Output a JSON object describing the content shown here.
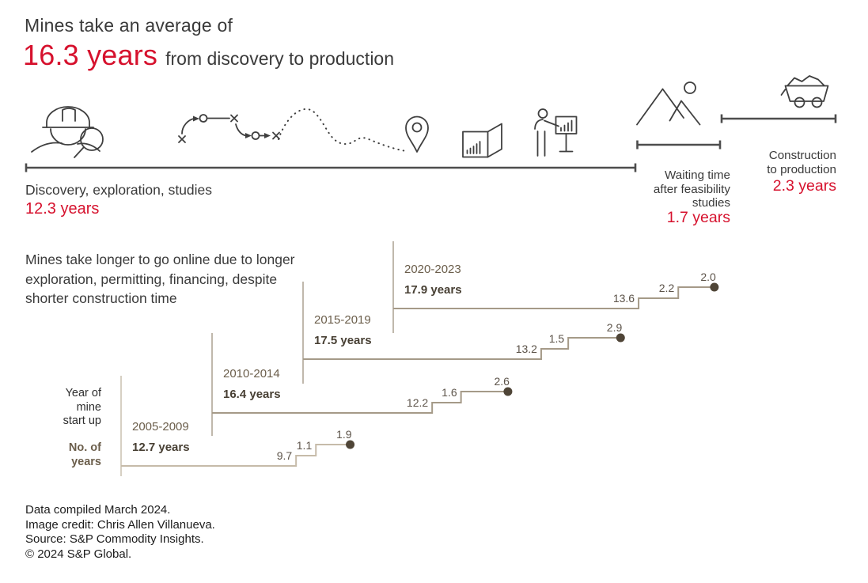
{
  "colors": {
    "accent_red": "#d6112d",
    "ink": "#3a3a3a",
    "footer_ink": "#1c1c1c",
    "bar": "#4d4d4d",
    "icon": "#3f3f3f",
    "step_line": "#a59a88",
    "step_line_light": "#c6bba9",
    "dot": "#4f4537",
    "period_label": "#6b5e4b",
    "total_label": "#473f33",
    "value_label": "#5c5349"
  },
  "header": {
    "line1": "Mines take an average of",
    "highlight": "16.3 years",
    "rest": "from discovery to production"
  },
  "timeline": {
    "icons": [
      "miner-explorer",
      "strategy-path",
      "dotted-route",
      "location-pin",
      "report",
      "presenter",
      "mountains",
      "mine-cart"
    ],
    "phases": [
      {
        "label": "Discovery, exploration, studies",
        "value": "12.3 years"
      },
      {
        "label": "Waiting time\nafter feasibility\nstudies",
        "value": "1.7 years"
      },
      {
        "label": "Construction\nto production",
        "value": "2.3 years"
      }
    ]
  },
  "annotation": "Mines take longer to go online due to longer exploration, permitting, financing, despite shorter construction time",
  "axis": {
    "start_label": "Year of\nmine\nstart up",
    "unit_label": "No. of\nyears"
  },
  "chart_data": {
    "type": "stepped-timeline-bar",
    "title": "Mines take longer to go online due to longer exploration, permitting, financing, despite shorter construction time",
    "unit": "years",
    "xlabel": "No. of years",
    "ylabel": "Year of mine start up",
    "segment_names": [
      "Discovery, exploration, studies",
      "Waiting time after feasibility studies",
      "Construction to production"
    ],
    "series": [
      {
        "period": "2005-2009",
        "total": 12.7,
        "total_label": "12.7 years",
        "segments": [
          9.7,
          1.1,
          1.9
        ]
      },
      {
        "period": "2010-2014",
        "total": 16.4,
        "total_label": "16.4 years",
        "segments": [
          12.2,
          1.6,
          2.6
        ]
      },
      {
        "period": "2015-2019",
        "total": 17.5,
        "total_label": "17.5 years",
        "segments": [
          13.2,
          1.5,
          2.9
        ]
      },
      {
        "period": "2020-2023",
        "total": 17.9,
        "total_label": "17.9 years",
        "segments": [
          13.6,
          2.2,
          2.0
        ]
      }
    ]
  },
  "footer": {
    "lines": [
      "Data compiled March 2024.",
      "Image credit: Chris Allen Villanueva.",
      "Source: S&P Commodity Insights.",
      "© 2024 S&P Global."
    ]
  }
}
